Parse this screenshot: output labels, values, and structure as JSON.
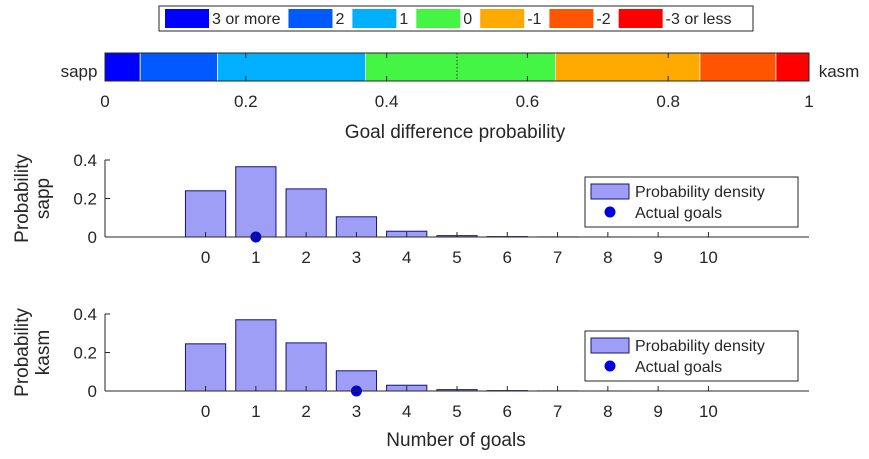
{
  "chart_data": [
    {
      "type": "stacked-bar",
      "legend": {
        "placement": "top",
        "entries": [
          {
            "label": "3 or more",
            "color": "#0000ff"
          },
          {
            "label": "2",
            "color": "#005aff"
          },
          {
            "label": "1",
            "color": "#00b0ff"
          },
          {
            "label": "0",
            "color": "#44f544"
          },
          {
            "label": "-1",
            "color": "#ffaa00"
          },
          {
            "label": "-2",
            "color": "#ff5500"
          },
          {
            "label": "-3 or less",
            "color": "#ff0000"
          }
        ]
      },
      "left_label": "sapp",
      "right_label": "kasm",
      "cumulative_boundaries": [
        0,
        0.05,
        0.16,
        0.37,
        0.64,
        0.845,
        0.953,
        1.0
      ],
      "reference_line": 0.5,
      "xlabel": "Goal difference probability",
      "xlim": [
        0,
        1
      ],
      "xticks": [
        "0",
        "0.2",
        "0.4",
        "0.6",
        "0.8",
        "1"
      ]
    },
    {
      "type": "bar",
      "ylabel": "Probability\nsapp",
      "xlabel": "",
      "categories": [
        "0",
        "1",
        "2",
        "3",
        "4",
        "5",
        "6",
        "7",
        "8",
        "9",
        "10"
      ],
      "values": [
        0.24,
        0.365,
        0.25,
        0.105,
        0.03,
        0.007,
        0.002,
        0.0005,
        0.0001,
        0.0,
        0.0
      ],
      "actual_goals": 1,
      "ylim": [
        0,
        0.4
      ],
      "yticks": [
        "0",
        "0.2",
        "0.4"
      ],
      "legend": [
        "Probability density",
        "Actual goals"
      ],
      "legend_placement": "right",
      "grid": false
    },
    {
      "type": "bar",
      "ylabel": "Probability\nkasm",
      "xlabel": "Number of goals",
      "categories": [
        "0",
        "1",
        "2",
        "3",
        "4",
        "5",
        "6",
        "7",
        "8",
        "9",
        "10"
      ],
      "values": [
        0.245,
        0.37,
        0.25,
        0.105,
        0.03,
        0.007,
        0.002,
        0.0005,
        0.0001,
        0.0,
        0.0
      ],
      "actual_goals": 3,
      "ylim": [
        0,
        0.4
      ],
      "yticks": [
        "0",
        "0.2",
        "0.4"
      ],
      "legend": [
        "Probability density",
        "Actual goals"
      ],
      "legend_placement": "right",
      "grid": false
    }
  ],
  "colors": {
    "bar_fill": "#9e9ef6",
    "bar_edge": "#14147a",
    "marker": "#0000dd",
    "axis": "#262626"
  }
}
